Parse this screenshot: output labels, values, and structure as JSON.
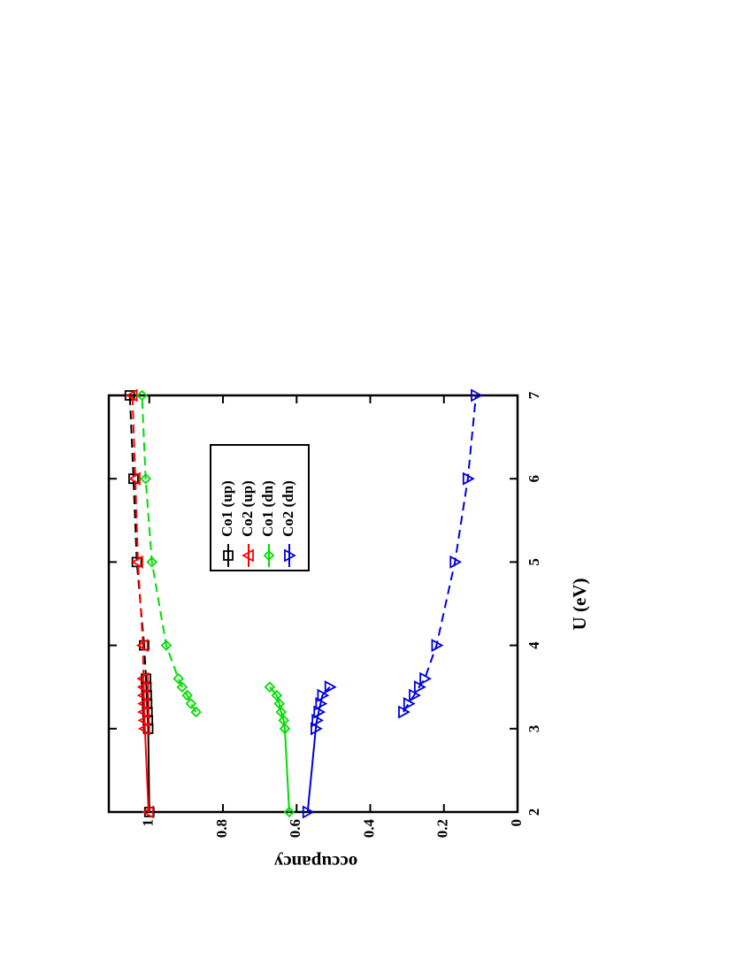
{
  "chart_data": {
    "type": "line",
    "x_label": "U (eV)",
    "y_label": "occupancy",
    "xlim": [
      2,
      7
    ],
    "ylim": [
      0,
      1.11
    ],
    "xticks": [
      2,
      3,
      4,
      5,
      6,
      7
    ],
    "yticks": [
      0,
      0.2,
      0.4,
      0.6,
      0.8,
      1
    ],
    "rotation": -90,
    "series": [
      {
        "name": "Co1 (up)",
        "color": "#000000",
        "marker": "square",
        "segments": [
          {
            "x": [
              2,
              3.0,
              3.1,
              3.2,
              3.3,
              3.4,
              3.5,
              3.6
            ],
            "values": [
              1.0,
              1.003,
              1.004,
              1.005,
              1.006,
              1.007,
              1.008,
              1.009
            ],
            "dashed": false,
            "joined": false
          },
          {
            "x": [
              4,
              5,
              6,
              7
            ],
            "values": [
              1.014,
              1.034,
              1.043,
              1.053
            ],
            "dashed": true,
            "joined": true
          }
        ]
      },
      {
        "name": "Co2 (up)",
        "color": "#ff0000",
        "marker": "triangle-up",
        "segments": [
          {
            "x": [
              2,
              3.0,
              3.1,
              3.2,
              3.3,
              3.4,
              3.5,
              3.6
            ],
            "values": [
              1.002,
              1.012,
              1.013,
              1.014,
              1.014,
              1.015,
              1.015,
              1.016
            ],
            "dashed": false,
            "joined": false
          },
          {
            "x": [
              4,
              5,
              6,
              7
            ],
            "values": [
              1.017,
              1.031,
              1.038,
              1.046
            ],
            "dashed": true,
            "joined": true
          }
        ]
      },
      {
        "name": "Co1 (dn)",
        "color": "#00dd00",
        "marker": "diamond",
        "segments": [
          {
            "x": [
              2,
              3.0,
              3.1,
              3.2,
              3.3,
              3.4,
              3.5
            ],
            "values": [
              0.62,
              0.632,
              0.635,
              0.642,
              0.647,
              0.654,
              0.673
            ],
            "dashed": false,
            "joined": false
          },
          {
            "x": [
              3.2,
              3.3,
              3.4,
              3.5,
              3.6,
              4,
              5,
              6,
              7
            ],
            "values": [
              0.873,
              0.887,
              0.897,
              0.911,
              0.921,
              0.954,
              0.993,
              1.01,
              1.02
            ],
            "dashed": true,
            "joined": false
          }
        ]
      },
      {
        "name": "Co2 (dn)",
        "color": "#0000dd",
        "marker": "triangle-down",
        "segments": [
          {
            "x": [
              2,
              3.0,
              3.1,
              3.2,
              3.3,
              3.4,
              3.5
            ],
            "values": [
              0.57,
              0.548,
              0.545,
              0.54,
              0.535,
              0.53,
              0.51
            ],
            "dashed": false,
            "joined": false
          },
          {
            "x": [
              3.2,
              3.3,
              3.4,
              3.5,
              3.6,
              4,
              5,
              6,
              7
            ],
            "values": [
              0.31,
              0.296,
              0.281,
              0.267,
              0.252,
              0.22,
              0.17,
              0.135,
              0.113
            ],
            "dashed": true,
            "joined": false
          }
        ]
      }
    ]
  }
}
